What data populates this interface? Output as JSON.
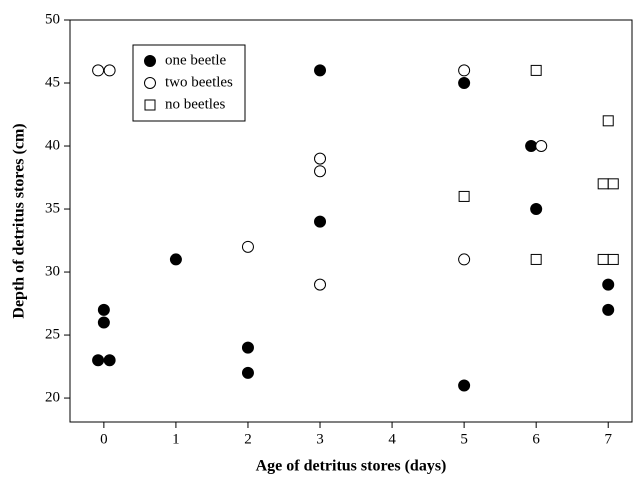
{
  "chart_data": {
    "type": "scatter",
    "xlabel": "Age of detritus stores (days)",
    "ylabel": "Depth of detritus stores (cm)",
    "xlim": [
      -0.47,
      7.33
    ],
    "ylim": [
      18.1,
      50
    ],
    "xticks": [
      0,
      1,
      2,
      3,
      4,
      5,
      6,
      7
    ],
    "yticks": [
      20,
      25,
      30,
      35,
      40,
      45,
      50
    ],
    "legend": "upper left",
    "series": [
      {
        "name": "one beetle",
        "color": "#000000",
        "marker": "filled-circle",
        "x": [
          -0.08,
          0.08,
          0,
          0,
          1,
          2,
          2,
          3,
          3,
          5,
          5,
          5.93,
          6,
          7,
          7
        ],
        "y": [
          23,
          23,
          26,
          27,
          31,
          24,
          22,
          46,
          34,
          45,
          21,
          40,
          35,
          29,
          27
        ]
      },
      {
        "name": "two beetles",
        "color": "#000000",
        "marker": "circle",
        "x": [
          -0.08,
          0.08,
          2,
          3,
          3,
          3,
          5,
          5,
          6.07
        ],
        "y": [
          46,
          46,
          32,
          39,
          38,
          29,
          46,
          31,
          40
        ]
      },
      {
        "name": "no beetles",
        "color": "#000000",
        "marker": "square",
        "x": [
          6,
          5,
          6,
          7,
          6.93,
          7.07,
          6.93,
          7.07
        ],
        "y": [
          46,
          36,
          31,
          42,
          37,
          37,
          31,
          31
        ]
      }
    ]
  }
}
